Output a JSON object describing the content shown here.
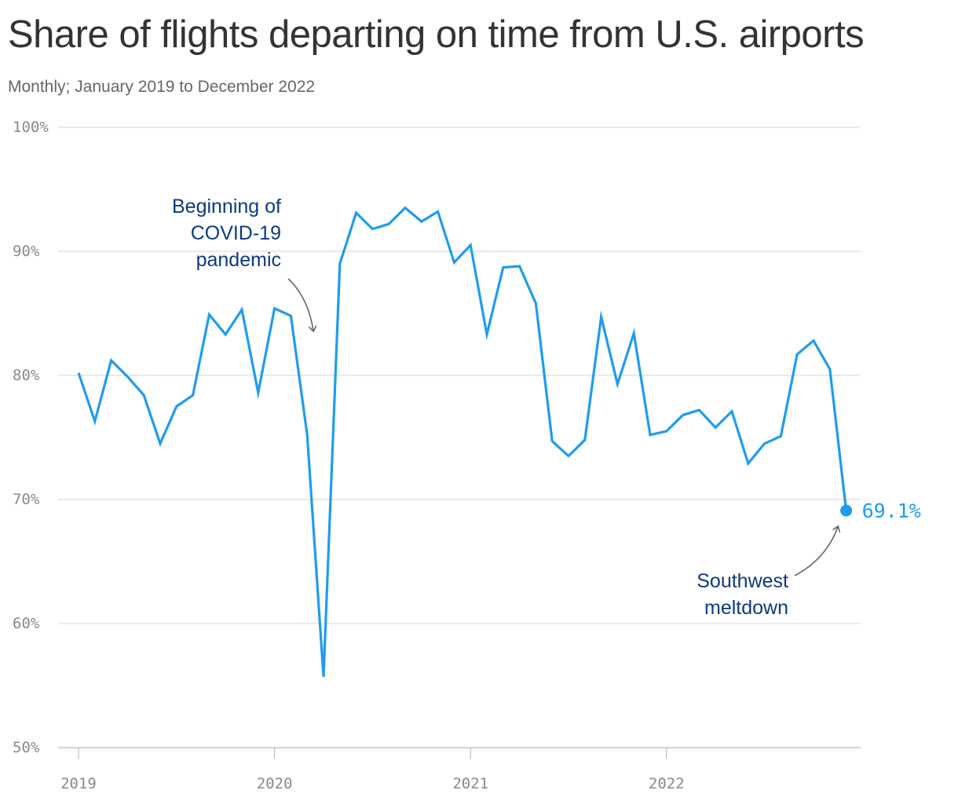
{
  "title": "Share of flights departing on time from U.S. airports",
  "subtitle": "Monthly; January 2019 to December 2022",
  "colors": {
    "line": "#1f9cf0",
    "grid": "#dddddd",
    "axis": "#bbbbbb",
    "tick_text": "#8a8a8a",
    "annotation_text": "#0b3a83",
    "arrow": "#666666"
  },
  "chart_data": {
    "type": "line",
    "title": "Share of flights departing on time from U.S. airports",
    "subtitle": "Monthly; January 2019 to December 2022",
    "xlabel": "",
    "ylabel": "",
    "ylim": [
      50,
      100
    ],
    "y_unit": "%",
    "y_ticks": [
      50,
      60,
      70,
      80,
      90,
      100
    ],
    "y_tick_labels": [
      "50%",
      "60%",
      "70%",
      "80%",
      "90%",
      "100%"
    ],
    "x_ticks": [
      "2019-01",
      "2020-01",
      "2021-01",
      "2022-01"
    ],
    "x_tick_labels": [
      "2019",
      "2020",
      "2021",
      "2022"
    ],
    "grid": true,
    "x": [
      "2019-01",
      "2019-02",
      "2019-03",
      "2019-04",
      "2019-05",
      "2019-06",
      "2019-07",
      "2019-08",
      "2019-09",
      "2019-10",
      "2019-11",
      "2019-12",
      "2020-01",
      "2020-02",
      "2020-03",
      "2020-04",
      "2020-05",
      "2020-06",
      "2020-07",
      "2020-08",
      "2020-09",
      "2020-10",
      "2020-11",
      "2020-12",
      "2021-01",
      "2021-02",
      "2021-03",
      "2021-04",
      "2021-05",
      "2021-06",
      "2021-07",
      "2021-08",
      "2021-09",
      "2021-10",
      "2021-11",
      "2021-12",
      "2022-01",
      "2022-02",
      "2022-03",
      "2022-04",
      "2022-05",
      "2022-06",
      "2022-07",
      "2022-08",
      "2022-09",
      "2022-10",
      "2022-11",
      "2022-12"
    ],
    "series": [
      {
        "values": [
          80.2,
          76.3,
          81.2,
          79.9,
          78.4,
          74.5,
          77.5,
          78.4,
          84.9,
          83.3,
          85.3,
          78.6,
          85.4,
          84.8,
          75.2,
          55.7,
          89.0,
          93.1,
          91.8,
          92.2,
          93.5,
          92.4,
          93.2,
          89.1,
          90.5,
          83.3,
          88.7,
          88.8,
          85.8,
          74.7,
          73.5,
          74.8,
          84.7,
          79.3,
          83.4,
          75.2,
          75.5,
          76.8,
          77.2,
          75.8,
          77.1,
          72.9,
          74.5,
          75.1,
          81.7,
          82.8,
          80.5,
          69.1
        ]
      }
    ],
    "end_label": "69.1%",
    "annotations": [
      {
        "lines": [
          "Beginning of",
          "COVID-19",
          "pandemic"
        ],
        "target_x": "2020-03"
      },
      {
        "lines": [
          "Southwest",
          "meltdown"
        ],
        "target_x": "2022-12"
      }
    ]
  }
}
